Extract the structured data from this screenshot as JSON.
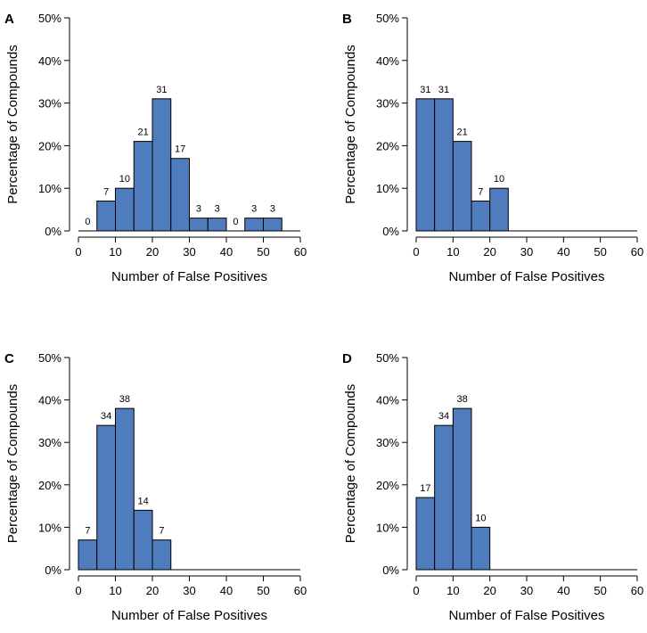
{
  "figure": {
    "bar_color": "#4f7cbd",
    "bar_stroke": "#000000",
    "axis_color": "#000000"
  },
  "chart_data": [
    {
      "panel": "A",
      "type": "bar",
      "xlabel": "Number of False Positives",
      "ylabel": "Percentage of Compounds",
      "xlim": [
        0,
        60
      ],
      "ylim": [
        0,
        50
      ],
      "xticks": [
        0,
        10,
        20,
        30,
        40,
        50,
        60
      ],
      "xtick_labels": [
        "0",
        "10",
        "20",
        "30",
        "40",
        "50",
        "60"
      ],
      "yticks": [
        0,
        10,
        20,
        30,
        40,
        50
      ],
      "ytick_labels": [
        "0%",
        "10%",
        "20%",
        "30%",
        "40%",
        "50%"
      ],
      "bin_width": 5,
      "bins": [
        0,
        5,
        10,
        15,
        20,
        25,
        30,
        35,
        40,
        45,
        50
      ],
      "values": [
        0,
        7,
        10,
        21,
        31,
        17,
        3,
        3,
        0,
        3,
        3
      ],
      "labels": [
        "0",
        "7",
        "10",
        "21",
        "31",
        "17",
        "3",
        "3",
        "0",
        "3",
        "3"
      ]
    },
    {
      "panel": "B",
      "type": "bar",
      "xlabel": "Number of False Positives",
      "ylabel": "Percentage of Compounds",
      "xlim": [
        0,
        60
      ],
      "ylim": [
        0,
        50
      ],
      "xticks": [
        0,
        10,
        20,
        30,
        40,
        50,
        60
      ],
      "xtick_labels": [
        "0",
        "10",
        "20",
        "30",
        "40",
        "50",
        "60"
      ],
      "yticks": [
        0,
        10,
        20,
        30,
        40,
        50
      ],
      "ytick_labels": [
        "0%",
        "10%",
        "20%",
        "30%",
        "40%",
        "50%"
      ],
      "bin_width": 5,
      "bins": [
        0,
        5,
        10,
        15,
        20
      ],
      "values": [
        31,
        31,
        21,
        7,
        10
      ],
      "labels": [
        "31",
        "31",
        "21",
        "7",
        "10"
      ]
    },
    {
      "panel": "C",
      "type": "bar",
      "xlabel": "Number of False Positives",
      "ylabel": "Percentage of Compounds",
      "xlim": [
        0,
        60
      ],
      "ylim": [
        0,
        50
      ],
      "xticks": [
        0,
        10,
        20,
        30,
        40,
        50,
        60
      ],
      "xtick_labels": [
        "0",
        "10",
        "20",
        "30",
        "40",
        "50",
        "60"
      ],
      "yticks": [
        0,
        10,
        20,
        30,
        40,
        50
      ],
      "ytick_labels": [
        "0%",
        "10%",
        "20%",
        "30%",
        "40%",
        "50%"
      ],
      "bin_width": 5,
      "bins": [
        0,
        5,
        10,
        15,
        20
      ],
      "values": [
        7,
        34,
        38,
        14,
        7
      ],
      "labels": [
        "7",
        "34",
        "38",
        "14",
        "7"
      ]
    },
    {
      "panel": "D",
      "type": "bar",
      "xlabel": "Number of False Positives",
      "ylabel": "Percentage of Compounds",
      "xlim": [
        0,
        60
      ],
      "ylim": [
        0,
        50
      ],
      "xticks": [
        0,
        10,
        20,
        30,
        40,
        50,
        60
      ],
      "xtick_labels": [
        "0",
        "10",
        "20",
        "30",
        "40",
        "50",
        "60"
      ],
      "yticks": [
        0,
        10,
        20,
        30,
        40,
        50
      ],
      "ytick_labels": [
        "0%",
        "10%",
        "20%",
        "30%",
        "40%",
        "50%"
      ],
      "bin_width": 5,
      "bins": [
        0,
        5,
        10,
        15
      ],
      "values": [
        17,
        34,
        38,
        10
      ],
      "labels": [
        "17",
        "34",
        "38",
        "10"
      ]
    }
  ]
}
